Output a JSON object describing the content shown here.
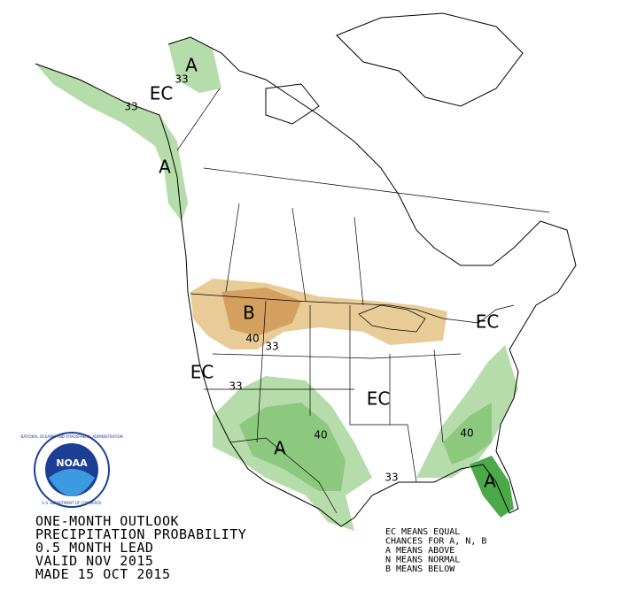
{
  "title_block": {
    "lines": [
      "ONE-MONTH OUTLOOK",
      "PRECIPITATION PROBABILITY",
      "0.5 MONTH LEAD",
      "VALID NOV 2015",
      "MADE 15 OCT 2015"
    ]
  },
  "key": {
    "lines": [
      "EC MEANS EQUAL",
      "CHANCES FOR A, N, B",
      "A MEANS ABOVE",
      "N MEANS NORMAL",
      "B MEANS BELOW"
    ]
  },
  "logo": {
    "text": "NOAA",
    "ring_top": "NATIONAL OCEANIC AND ATMOSPHERIC ADMINISTRATION",
    "ring_bottom": "U.S. DEPARTMENT OF COMMERCE"
  },
  "map_labels": [
    "EC",
    "A",
    "A",
    "B",
    "EC",
    "EC",
    "A",
    "EC",
    "A"
  ],
  "contour_labels": [
    33,
    33,
    40,
    33,
    33,
    40,
    40,
    33
  ]
}
